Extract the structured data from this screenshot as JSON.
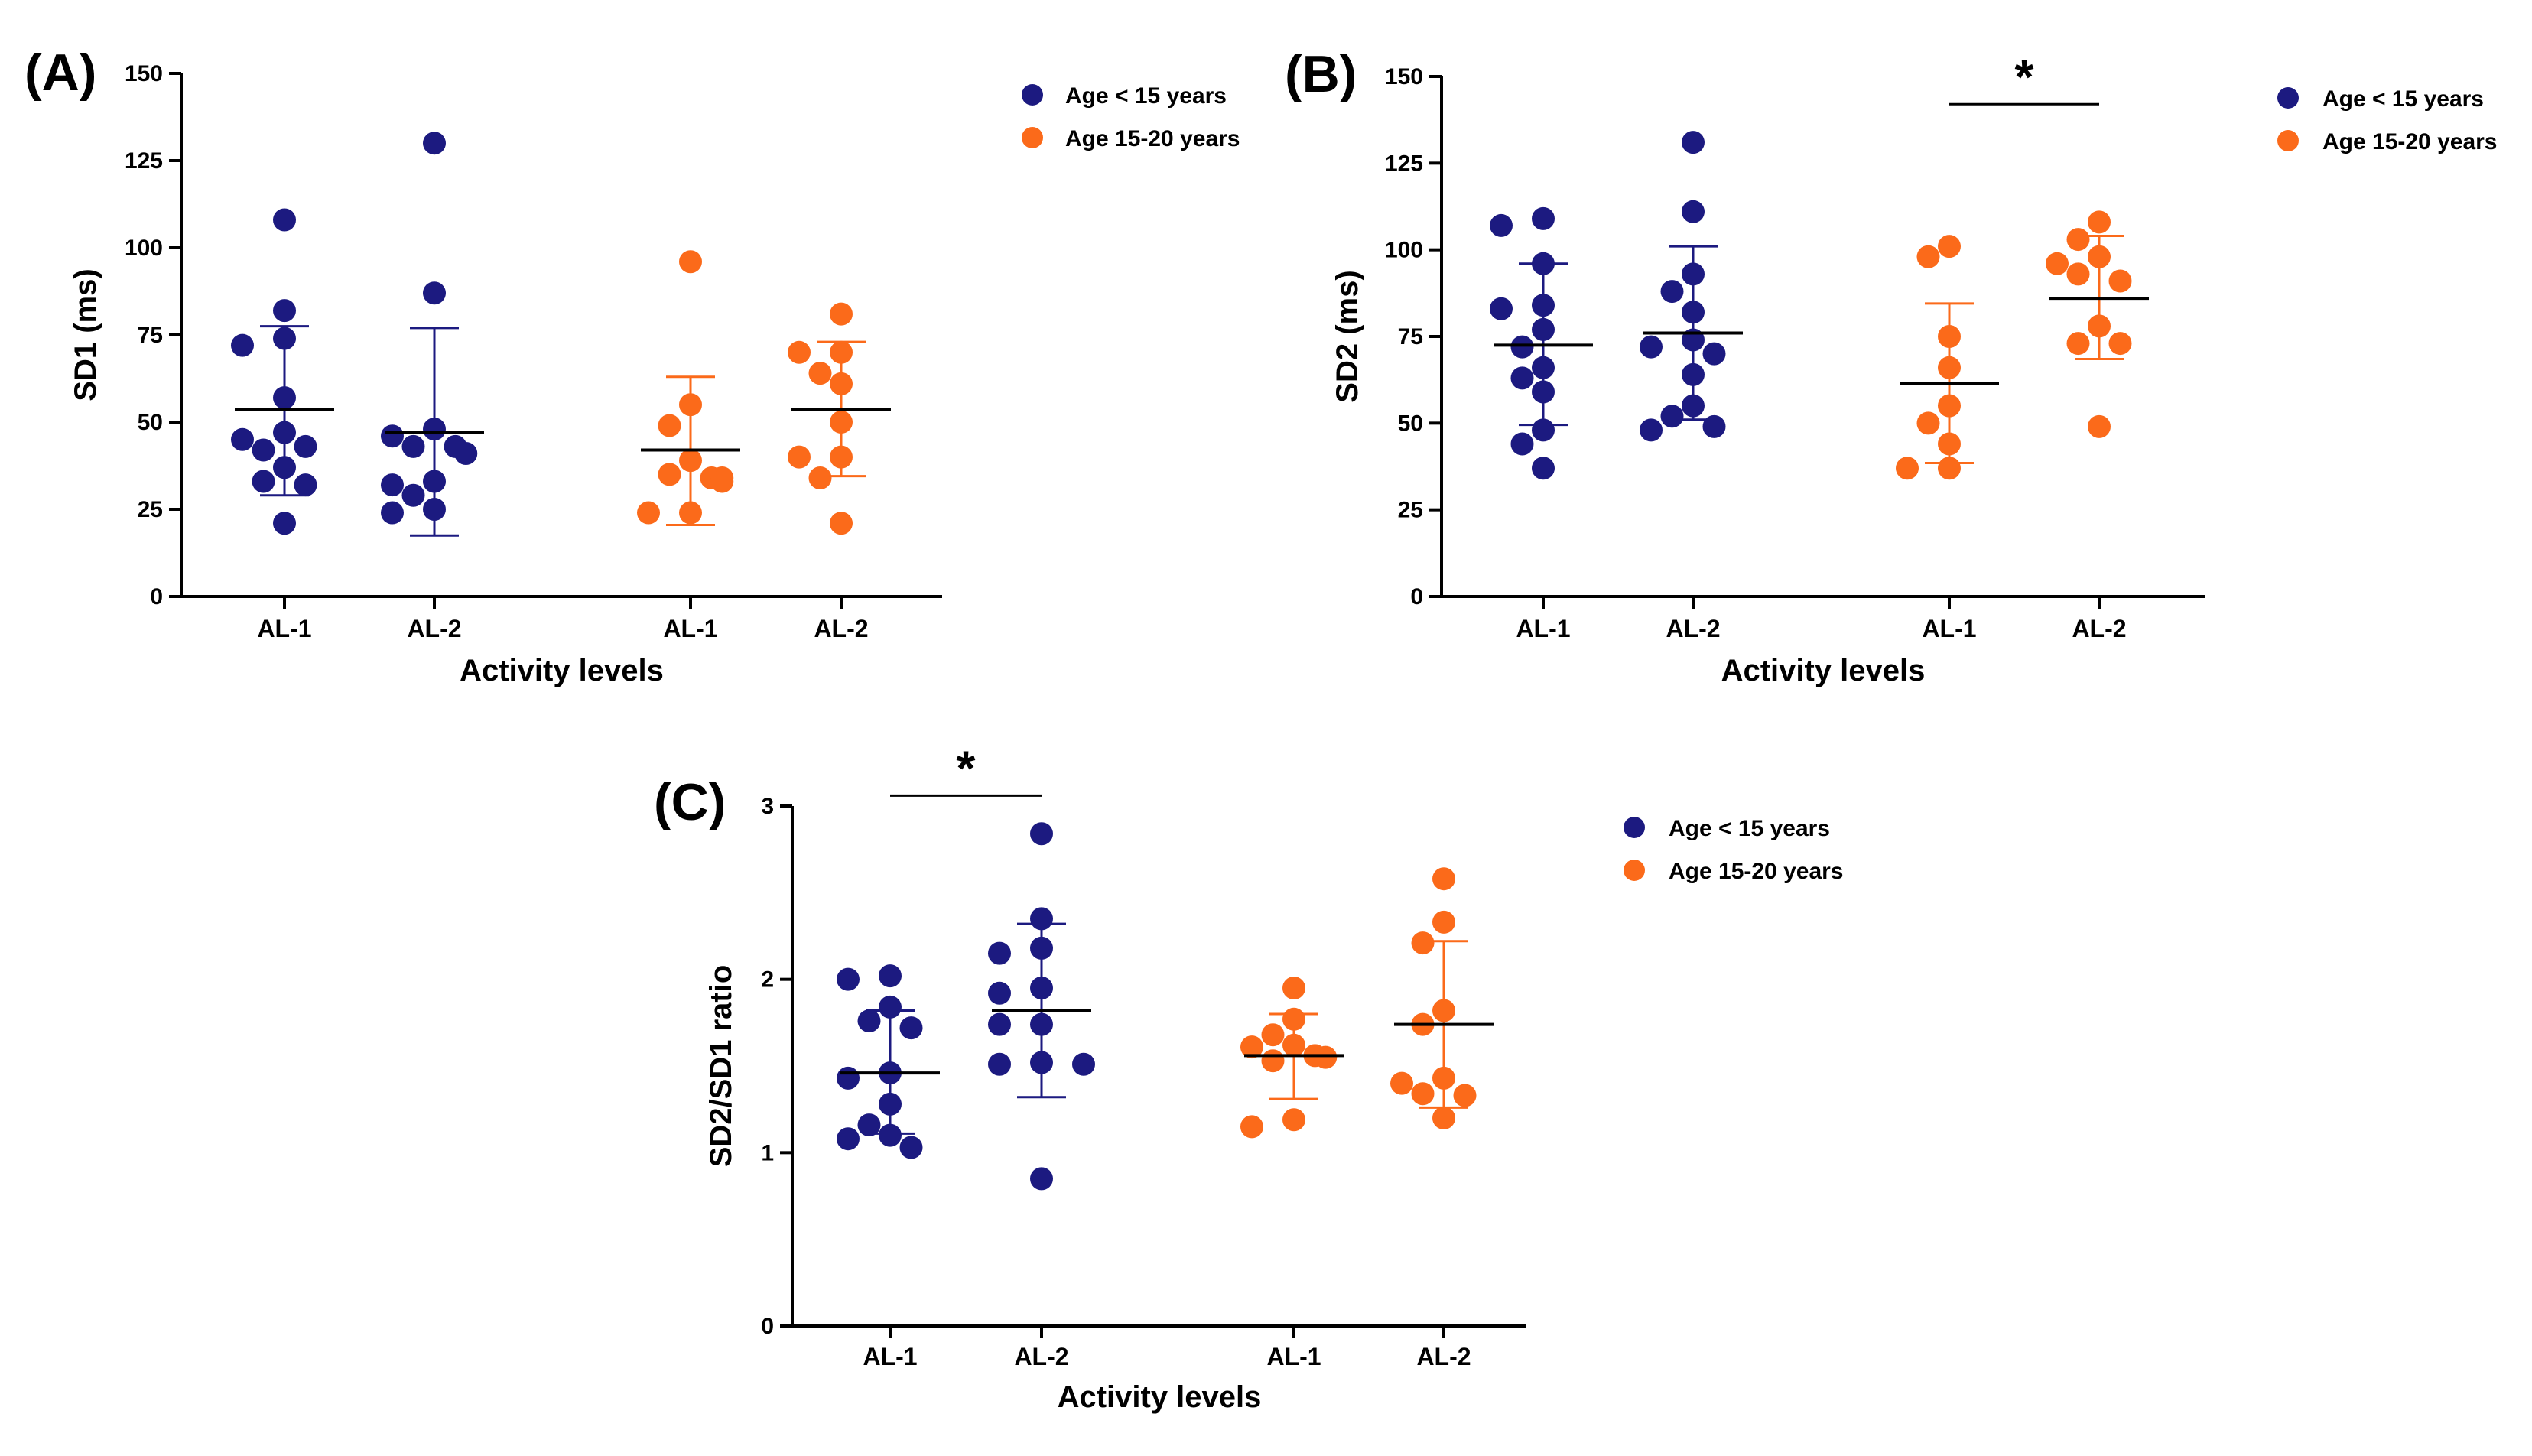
{
  "colors": {
    "group1": "#1c1a80",
    "group2": "#fb6a1a",
    "axis": "#000000",
    "mean": "#000000"
  },
  "chart_data": [
    {
      "id": "A",
      "type": "scatter",
      "panel_label": "(A)",
      "xlabel": "Activity levels",
      "ylabel": "SD1 (ms)",
      "ylim": [
        0,
        150
      ],
      "yticks": [
        "0",
        "25",
        "50",
        "75",
        "100",
        "125",
        "150"
      ],
      "legend": [
        "Age < 15 years",
        "Age 15-20 years"
      ],
      "legend_position": "top-right",
      "groups": [
        {
          "label": "AL-1",
          "series": "Age < 15 years",
          "mean": 53.5,
          "sd_low": 29,
          "sd_high": 77.5,
          "values": [
            108,
            82,
            74,
            72,
            57,
            47,
            45,
            43,
            42,
            37,
            33,
            32,
            21
          ]
        },
        {
          "label": "AL-2",
          "series": "Age < 15 years",
          "mean": 47,
          "sd_low": 17.5,
          "sd_high": 77,
          "values": [
            130,
            87,
            48,
            46,
            43,
            43,
            41,
            33,
            32,
            29,
            25,
            24
          ]
        },
        {
          "label": "AL-1",
          "series": "Age 15-20 years",
          "mean": 42,
          "sd_low": 20.5,
          "sd_high": 63,
          "values": [
            96,
            55,
            49,
            39,
            35,
            34,
            34,
            33,
            24,
            24
          ]
        },
        {
          "label": "AL-2",
          "series": "Age 15-20 years",
          "mean": 53.5,
          "sd_low": 34.5,
          "sd_high": 73,
          "values": [
            81,
            70,
            70,
            64,
            61,
            50,
            40,
            40,
            34,
            21
          ]
        }
      ],
      "significance": []
    },
    {
      "id": "B",
      "type": "scatter",
      "panel_label": "(B)",
      "xlabel": "Activity levels",
      "ylabel": "SD2 (ms)",
      "ylim": [
        0,
        150
      ],
      "yticks": [
        "0",
        "25",
        "50",
        "75",
        "100",
        "125",
        "150"
      ],
      "legend": [
        "Age < 15 years",
        "Age 15-20 years"
      ],
      "legend_position": "top-right",
      "groups": [
        {
          "label": "AL-1",
          "series": "Age < 15 years",
          "mean": 72.5,
          "sd_low": 49.5,
          "sd_high": 96,
          "values": [
            109,
            107,
            96,
            84,
            83,
            77,
            72,
            66,
            63,
            59,
            48,
            44,
            37
          ]
        },
        {
          "label": "AL-2",
          "series": "Age < 15 years",
          "mean": 76,
          "sd_low": 51,
          "sd_high": 101,
          "values": [
            131,
            111,
            93,
            88,
            82,
            74,
            72,
            70,
            64,
            55,
            52,
            49,
            48
          ]
        },
        {
          "label": "AL-1",
          "series": "Age 15-20 years",
          "mean": 61.5,
          "sd_low": 38.5,
          "sd_high": 84.5,
          "values": [
            101,
            98,
            75,
            66,
            55,
            50,
            44,
            37,
            37
          ]
        },
        {
          "label": "AL-2",
          "series": "Age 15-20 years",
          "mean": 86,
          "sd_low": 68.5,
          "sd_high": 104,
          "values": [
            108,
            103,
            98,
            96,
            93,
            91,
            78,
            73,
            73,
            49
          ]
        }
      ],
      "significance": [
        {
          "from": 2,
          "to": 3,
          "label": "*",
          "level": 142
        }
      ]
    },
    {
      "id": "C",
      "type": "scatter",
      "panel_label": "(C)",
      "xlabel": "Activity levels",
      "ylabel": "SD2/SD1 ratio",
      "ylim": [
        0,
        3
      ],
      "yticks": [
        "0",
        "1",
        "2",
        "3"
      ],
      "legend": [
        "Age < 15 years",
        "Age 15-20 years"
      ],
      "legend_position": "top-right",
      "groups": [
        {
          "label": "AL-1",
          "series": "Age < 15 years",
          "mean": 1.46,
          "sd_low": 1.11,
          "sd_high": 1.82,
          "values": [
            2.02,
            2.0,
            1.84,
            1.76,
            1.72,
            1.46,
            1.43,
            1.28,
            1.16,
            1.1,
            1.08,
            1.03
          ]
        },
        {
          "label": "AL-2",
          "series": "Age < 15 years",
          "mean": 1.82,
          "sd_low": 1.32,
          "sd_high": 2.32,
          "values": [
            2.84,
            2.35,
            2.18,
            2.15,
            1.95,
            1.92,
            1.74,
            1.74,
            1.52,
            1.51,
            1.51,
            0.85
          ]
        },
        {
          "label": "AL-1",
          "series": "Age 15-20 years",
          "mean": 1.56,
          "sd_low": 1.31,
          "sd_high": 1.8,
          "values": [
            1.95,
            1.77,
            1.68,
            1.62,
            1.61,
            1.56,
            1.55,
            1.53,
            1.19,
            1.15
          ]
        },
        {
          "label": "AL-2",
          "series": "Age 15-20 years",
          "mean": 1.74,
          "sd_low": 1.26,
          "sd_high": 2.22,
          "values": [
            2.58,
            2.33,
            2.21,
            1.82,
            1.74,
            1.43,
            1.4,
            1.34,
            1.33,
            1.2
          ]
        }
      ],
      "significance": [
        {
          "from": 0,
          "to": 1,
          "label": "*",
          "level": 3.06
        }
      ]
    }
  ]
}
